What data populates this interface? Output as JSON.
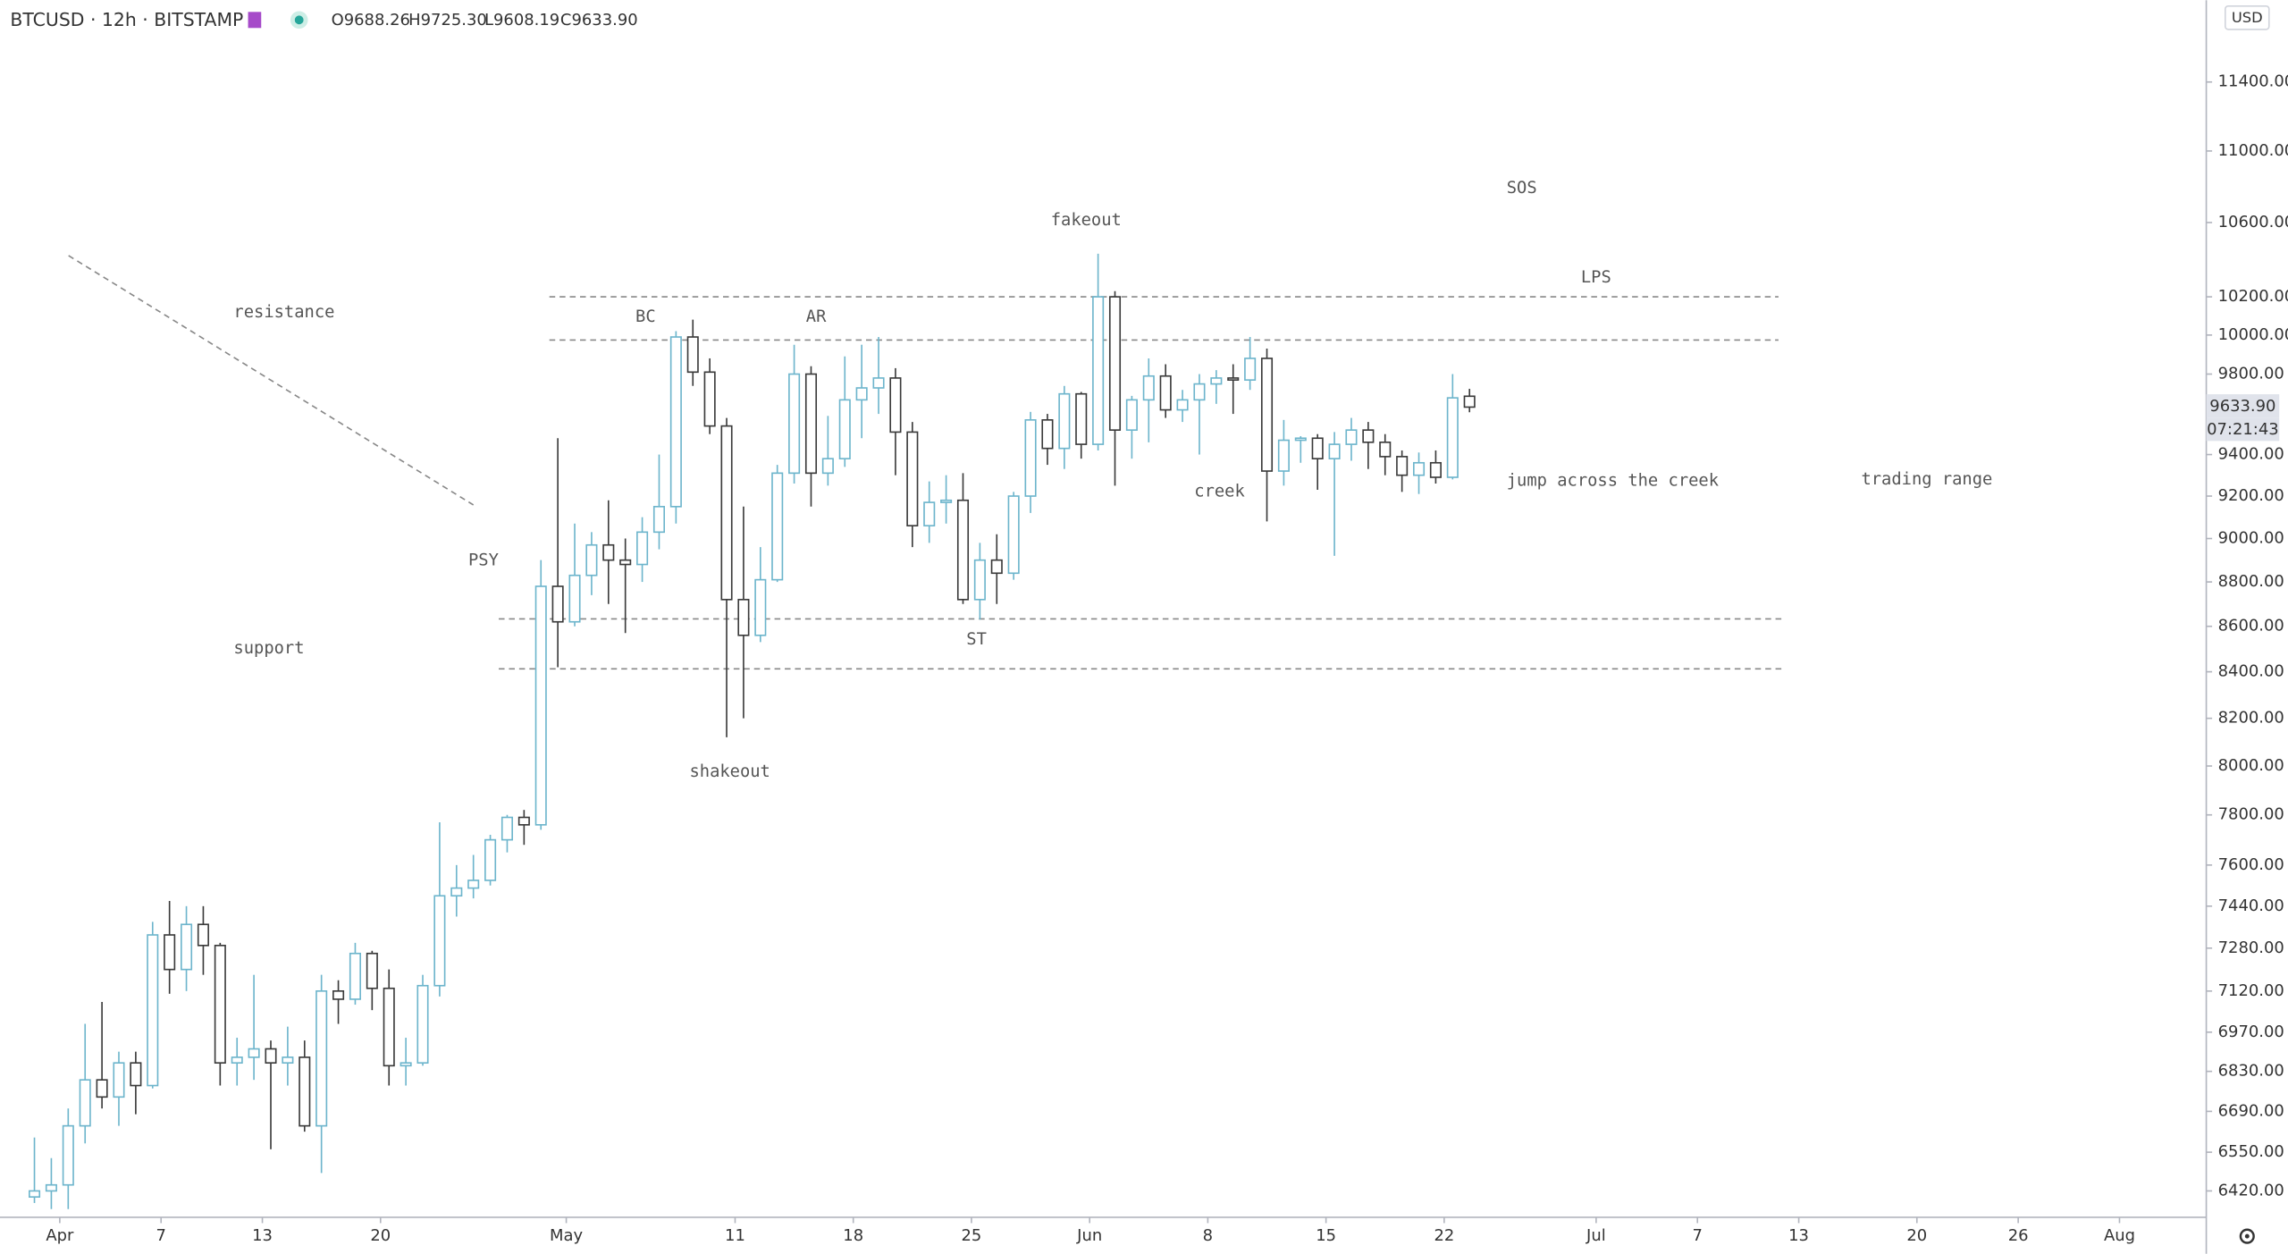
{
  "header": {
    "symbol": "BTCUSD · 12h · BITSTAMP",
    "ohlc": [
      "O9688.26",
      "H9725.30",
      "L9608.19",
      "C9633.90"
    ],
    "currency": "USD",
    "last_price": "9633.90",
    "countdown": "07:21:43"
  },
  "chart_data": {
    "type": "candlestick",
    "log_scale": true,
    "up_color": "#6db5cc",
    "down_color": "#3a3a3a",
    "xlim": [
      -3.54,
      127.14
    ],
    "ylim": [
      6333,
      11893
    ],
    "xticks": [
      {
        "value": 0,
        "label": "Apr"
      },
      {
        "value": 6,
        "label": "7"
      },
      {
        "value": 12,
        "label": "13"
      },
      {
        "value": 19,
        "label": "20"
      },
      {
        "value": 30,
        "label": "May"
      },
      {
        "value": 40,
        "label": "11"
      },
      {
        "value": 47,
        "label": "18"
      },
      {
        "value": 54,
        "label": "25"
      },
      {
        "value": 61,
        "label": "Jun"
      },
      {
        "value": 68,
        "label": "8"
      },
      {
        "value": 75,
        "label": "15"
      },
      {
        "value": 82,
        "label": "22"
      },
      {
        "value": 91,
        "label": "Jul"
      },
      {
        "value": 97,
        "label": "7"
      },
      {
        "value": 103,
        "label": "13"
      },
      {
        "value": 110,
        "label": "20"
      },
      {
        "value": 116,
        "label": "26"
      },
      {
        "value": 122,
        "label": "Aug"
      }
    ],
    "yticks": [
      {
        "value": 6420,
        "label": "6420.00"
      },
      {
        "value": 6550,
        "label": "6550.00"
      },
      {
        "value": 6690,
        "label": "6690.00"
      },
      {
        "value": 6830,
        "label": "6830.00"
      },
      {
        "value": 6970,
        "label": "6970.00"
      },
      {
        "value": 7120,
        "label": "7120.00"
      },
      {
        "value": 7280,
        "label": "7280.00"
      },
      {
        "value": 7440,
        "label": "7440.00"
      },
      {
        "value": 7600,
        "label": "7600.00"
      },
      {
        "value": 7800,
        "label": "7800.00"
      },
      {
        "value": 8000,
        "label": "8000.00"
      },
      {
        "value": 8200,
        "label": "8200.00"
      },
      {
        "value": 8400,
        "label": "8400.00"
      },
      {
        "value": 8600,
        "label": "8600.00"
      },
      {
        "value": 8800,
        "label": "8800.00"
      },
      {
        "value": 9000,
        "label": "9000.00"
      },
      {
        "value": 9200,
        "label": "9200.00"
      },
      {
        "value": 9400,
        "label": "9400.00"
      },
      {
        "value": 9800,
        "label": "9800.00"
      },
      {
        "value": 10000,
        "label": "10000.00"
      },
      {
        "value": 10200,
        "label": "10200.00"
      },
      {
        "value": 10600,
        "label": "10600.00"
      },
      {
        "value": 11000,
        "label": "11000.00"
      },
      {
        "value": 11400,
        "label": "11400.00"
      }
    ],
    "x": [
      -1.5,
      -0.5,
      0.5,
      1.5,
      2.5,
      3.5,
      4.5,
      5.5,
      6.5,
      7.5,
      8.5,
      9.5,
      10.5,
      11.5,
      12.5,
      13.5,
      14.5,
      15.5,
      16.5,
      17.5,
      18.5,
      19.5,
      20.5,
      21.5,
      22.5,
      23.5,
      24.5,
      25.5,
      26.5,
      27.5,
      28.5,
      29.5,
      30.5,
      31.5,
      32.5,
      33.5,
      34.5,
      35.5,
      36.5,
      37.5,
      38.5,
      39.5,
      40.5,
      41.5,
      42.5,
      43.5,
      44.5,
      45.5,
      46.5,
      47.5,
      48.5,
      49.5,
      50.5,
      51.5,
      52.5,
      53.5,
      54.5,
      55.5,
      56.5,
      57.5,
      58.5,
      59.5,
      60.5,
      61.5,
      62.5,
      63.5,
      64.5,
      65.5,
      66.5,
      67.5,
      68.5,
      69.5,
      70.5,
      71.5,
      72.5,
      73.5,
      74.5,
      75.5,
      76.5,
      77.5,
      78.5,
      79.5,
      80.5,
      81.5,
      82.5,
      83.5
    ],
    "values": [
      [
        6400,
        6600,
        6380,
        6420
      ],
      [
        6420,
        6530,
        6360,
        6440
      ],
      [
        6440,
        6700,
        6360,
        6640
      ],
      [
        6640,
        7000,
        6580,
        6800
      ],
      [
        6800,
        7080,
        6700,
        6740
      ],
      [
        6740,
        6900,
        6640,
        6860
      ],
      [
        6860,
        6900,
        6680,
        6780
      ],
      [
        6780,
        7380,
        6770,
        7330
      ],
      [
        7330,
        7460,
        7110,
        7200
      ],
      [
        7200,
        7440,
        7120,
        7370
      ],
      [
        7370,
        7440,
        7180,
        7290
      ],
      [
        7290,
        7300,
        6780,
        6860
      ],
      [
        6860,
        6950,
        6780,
        6880
      ],
      [
        6880,
        7180,
        6800,
        6910
      ],
      [
        6910,
        6940,
        6560,
        6860
      ],
      [
        6860,
        6990,
        6780,
        6880
      ],
      [
        6880,
        6940,
        6620,
        6640
      ],
      [
        6640,
        7180,
        6480,
        7120
      ],
      [
        7120,
        7160,
        7000,
        7090
      ],
      [
        7090,
        7300,
        7070,
        7260
      ],
      [
        7260,
        7270,
        7050,
        7130
      ],
      [
        7130,
        7200,
        6780,
        6850
      ],
      [
        6850,
        6950,
        6780,
        6860
      ],
      [
        6860,
        7180,
        6850,
        7140
      ],
      [
        7140,
        7770,
        7100,
        7480
      ],
      [
        7480,
        7600,
        7400,
        7510
      ],
      [
        7510,
        7640,
        7470,
        7540
      ],
      [
        7540,
        7720,
        7520,
        7700
      ],
      [
        7700,
        7800,
        7650,
        7790
      ],
      [
        7790,
        7820,
        7680,
        7760
      ],
      [
        7760,
        8900,
        7740,
        8780
      ],
      [
        8780,
        9480,
        8420,
        8620
      ],
      [
        8620,
        9070,
        8600,
        8830
      ],
      [
        8830,
        9030,
        8740,
        8970
      ],
      [
        8970,
        9180,
        8700,
        8900
      ],
      [
        8900,
        9000,
        8570,
        8880
      ],
      [
        8880,
        9100,
        8800,
        9030
      ],
      [
        9030,
        9400,
        8950,
        9150
      ],
      [
        9150,
        10020,
        9070,
        9990
      ],
      [
        9990,
        10080,
        9740,
        9810
      ],
      [
        9810,
        9880,
        9500,
        9540
      ],
      [
        9540,
        9580,
        8120,
        8720
      ],
      [
        8720,
        9150,
        8200,
        8560
      ],
      [
        8560,
        8960,
        8530,
        8810
      ],
      [
        8810,
        9350,
        8800,
        9310
      ],
      [
        9310,
        9950,
        9260,
        9800
      ],
      [
        9800,
        9840,
        9150,
        9310
      ],
      [
        9310,
        9590,
        9250,
        9380
      ],
      [
        9380,
        9890,
        9340,
        9670
      ],
      [
        9670,
        9950,
        9480,
        9730
      ],
      [
        9730,
        9990,
        9600,
        9780
      ],
      [
        9780,
        9830,
        9300,
        9510
      ],
      [
        9510,
        9560,
        8960,
        9060
      ],
      [
        9060,
        9270,
        8980,
        9170
      ],
      [
        9170,
        9300,
        9070,
        9180
      ],
      [
        9180,
        9310,
        8700,
        8720
      ],
      [
        8720,
        8980,
        8630,
        8900
      ],
      [
        8900,
        9020,
        8700,
        8840
      ],
      [
        8840,
        9220,
        8810,
        9200
      ],
      [
        9200,
        9610,
        9120,
        9570
      ],
      [
        9570,
        9600,
        9350,
        9430
      ],
      [
        9430,
        9740,
        9330,
        9700
      ],
      [
        9700,
        9710,
        9380,
        9450
      ],
      [
        9450,
        10430,
        9420,
        10200
      ],
      [
        10200,
        10230,
        9250,
        9520
      ],
      [
        9520,
        9690,
        9380,
        9670
      ],
      [
        9670,
        9880,
        9460,
        9790
      ],
      [
        9790,
        9850,
        9580,
        9620
      ],
      [
        9620,
        9720,
        9560,
        9670
      ],
      [
        9670,
        9800,
        9400,
        9750
      ],
      [
        9750,
        9820,
        9650,
        9780
      ],
      [
        9780,
        9850,
        9600,
        9770
      ],
      [
        9770,
        9990,
        9720,
        9880
      ],
      [
        9880,
        9930,
        9080,
        9320
      ],
      [
        9320,
        9570,
        9250,
        9470
      ],
      [
        9470,
        9490,
        9360,
        9480
      ],
      [
        9480,
        9500,
        9230,
        9380
      ],
      [
        9380,
        9510,
        8920,
        9450
      ],
      [
        9450,
        9580,
        9370,
        9520
      ],
      [
        9520,
        9560,
        9330,
        9460
      ],
      [
        9460,
        9500,
        9300,
        9390
      ],
      [
        9390,
        9420,
        9220,
        9300
      ],
      [
        9300,
        9410,
        9210,
        9360
      ],
      [
        9360,
        9420,
        9260,
        9290
      ],
      [
        9290,
        9800,
        9280,
        9680
      ],
      [
        9688.26,
        9725.3,
        9608.19,
        9633.9
      ]
    ],
    "lines": [
      {
        "x": [
          29.0,
          101.8
        ],
        "y": [
          10200,
          10200
        ]
      },
      {
        "x": [
          29.0,
          101.8
        ],
        "y": [
          9974,
          9974
        ]
      },
      {
        "x": [
          26.0,
          102.0
        ],
        "y": [
          8633,
          8633
        ]
      },
      {
        "x": [
          26.0,
          102.0
        ],
        "y": [
          8413,
          8413
        ]
      },
      {
        "x": [
          0.52,
          24.5
        ],
        "y": [
          10420,
          9158
        ]
      }
    ],
    "annotations": [
      {
        "text": "resistance",
        "x": 10.3,
        "y": 10118
      },
      {
        "text": "BC",
        "x": 34.1,
        "y": 10095
      },
      {
        "text": "AR",
        "x": 44.2,
        "y": 10095
      },
      {
        "text": "fakeout",
        "x": 58.7,
        "y": 10612
      },
      {
        "text": "SOS",
        "x": 85.7,
        "y": 10790
      },
      {
        "text": "LPS",
        "x": 90.1,
        "y": 10303
      },
      {
        "text": "PSY",
        "x": 24.2,
        "y": 8899
      },
      {
        "text": "support",
        "x": 10.3,
        "y": 8502
      },
      {
        "text": "ST",
        "x": 53.7,
        "y": 8542
      },
      {
        "text": "shakeout",
        "x": 37.3,
        "y": 7976
      },
      {
        "text": "creek",
        "x": 67.2,
        "y": 9221
      },
      {
        "text": "jump across the creek",
        "x": 85.7,
        "y": 9273
      },
      {
        "text": "trading range",
        "x": 106.7,
        "y": 9280
      }
    ]
  }
}
